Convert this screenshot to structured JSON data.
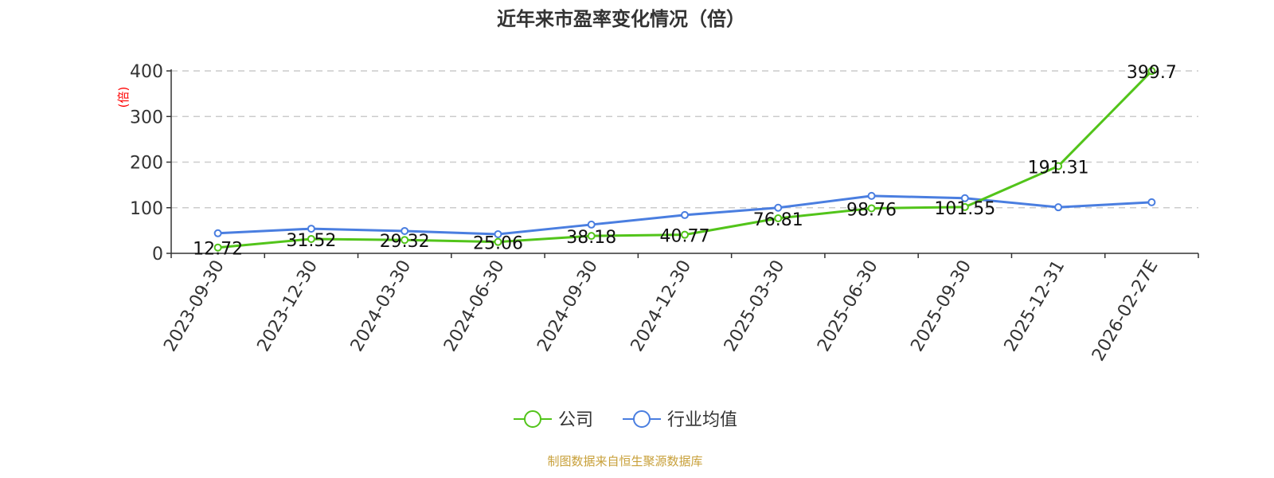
{
  "chart_data": {
    "type": "line",
    "title": "近年来市盈率变化情况（倍）",
    "ylabel": "(倍)",
    "xlabel": "",
    "ylim": [
      0,
      400
    ],
    "yticks": [
      0,
      100,
      200,
      300,
      400
    ],
    "grid": true,
    "legend_position": "bottom-center",
    "categories": [
      "2023-09-30",
      "2023-12-30",
      "2024-03-30",
      "2024-06-30",
      "2024-09-30",
      "2024-12-30",
      "2025-03-30",
      "2025-06-30",
      "2025-09-30",
      "2025-12-31",
      "2026-02-27E"
    ],
    "series": [
      {
        "name": "公司",
        "color": "#52c41a",
        "values": [
          12.72,
          31.52,
          29.32,
          25.06,
          38.18,
          40.77,
          76.81,
          98.76,
          101.55,
          191.31,
          399.7
        ],
        "labels": [
          "12.72",
          "31.52",
          "29.32",
          "25.06",
          "38.18",
          "40.77",
          "76.81",
          "98.76",
          "101.55",
          "191.31",
          "399.7"
        ]
      },
      {
        "name": "行业均值",
        "color": "#4a7ee0",
        "values": [
          44,
          54,
          49,
          42,
          63,
          84,
          100,
          126,
          121,
          101,
          112
        ]
      }
    ],
    "source": "制图数据来自恒生聚源数据库"
  }
}
